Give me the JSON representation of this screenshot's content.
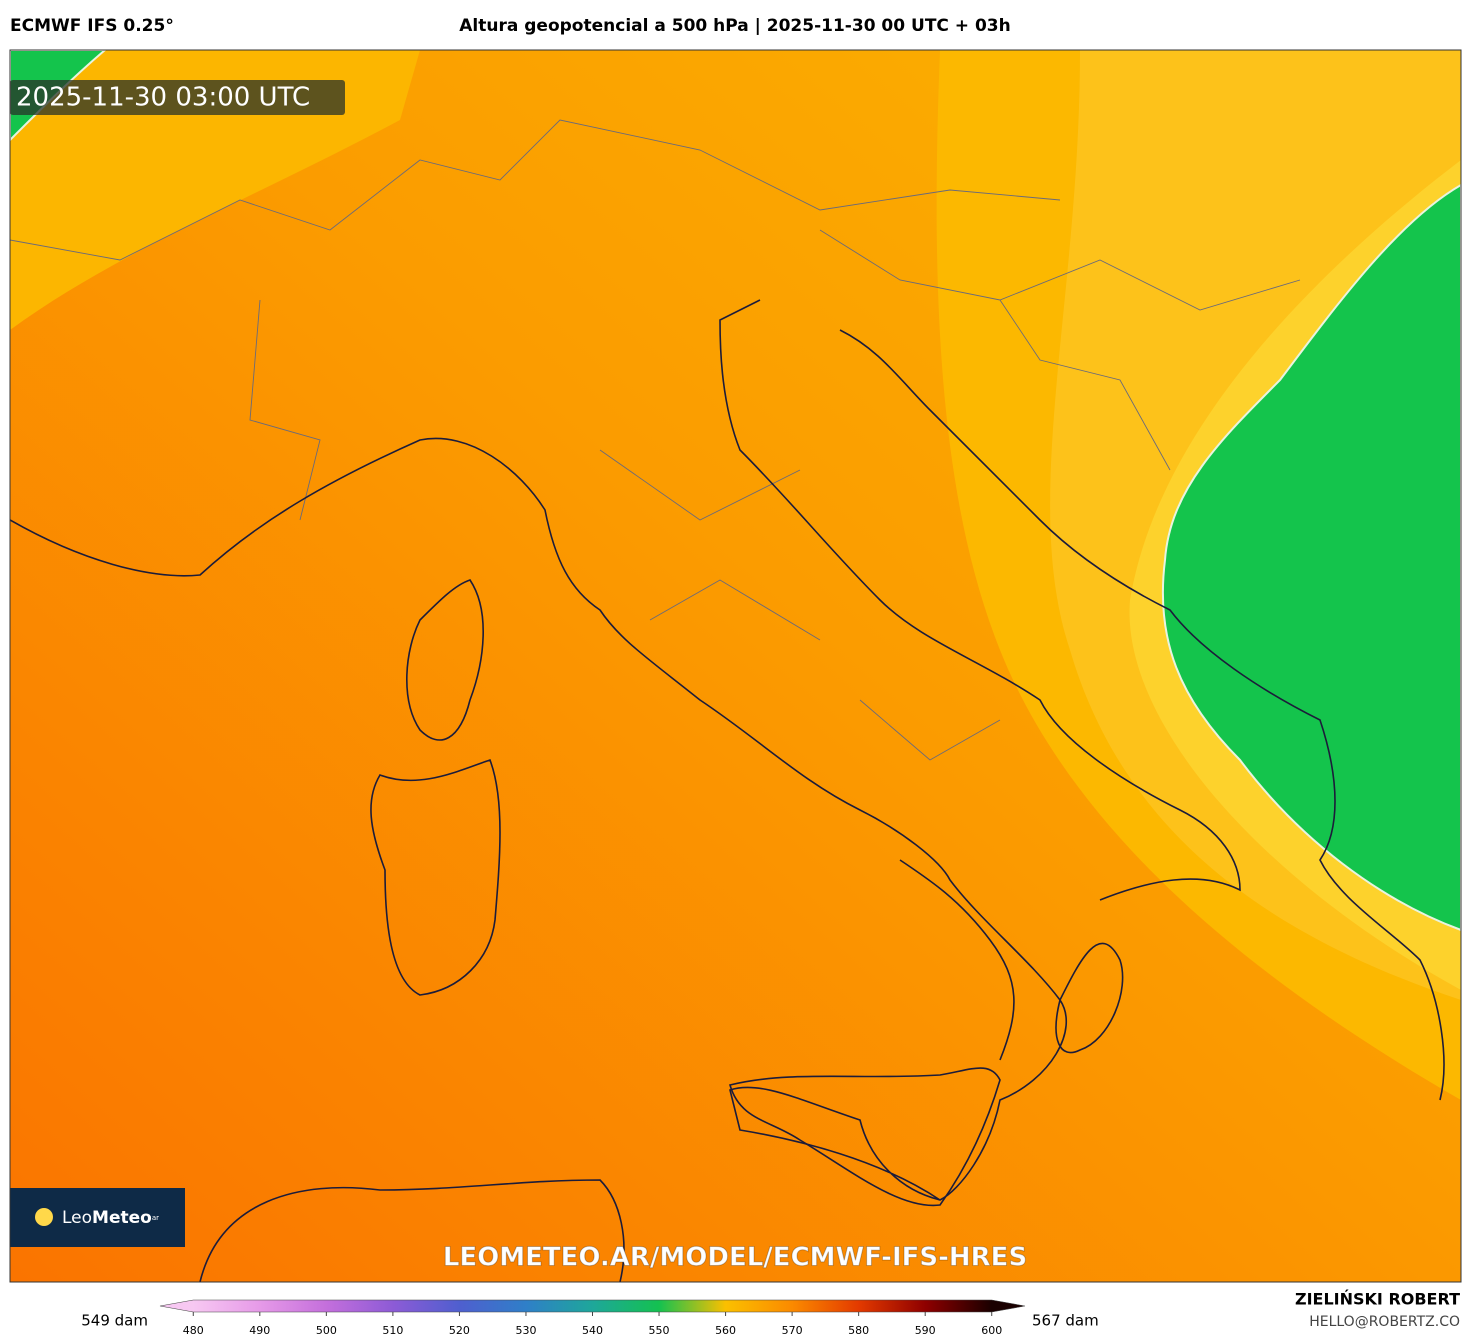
{
  "header": {
    "model": "ECMWF IFS 0.25°",
    "title": "Altura geopotencial a 500 hPa | 2025-11-30 00 UTC + 03h"
  },
  "map": {
    "valid_time": "2025-11-30 03:00 UTC",
    "logo": {
      "leo": "Leo",
      "meteo": "Meteo",
      "suffix": "ar"
    },
    "url": "LEOMETEO.AR/MODEL/ECMWF-IFS-HRES"
  },
  "colorbar": {
    "min_label": "549 dam",
    "max_label": "567 dam",
    "lim": [
      475,
      605
    ],
    "ticks": [
      480,
      490,
      500,
      510,
      520,
      530,
      540,
      550,
      560,
      570,
      580,
      590,
      600
    ],
    "colors": [
      "#f7c8f2",
      "#e69ae8",
      "#c46fdc",
      "#8d5bd6",
      "#4f5fcf",
      "#2f7fc8",
      "#1ea79a",
      "#14c150",
      "#fbc000",
      "#fb8a00",
      "#e33a00",
      "#8f0000",
      "#1a0000"
    ]
  },
  "credits": {
    "author": "ZIELIŃSKI ROBERT",
    "email": "HELLO@ROBERTZ.CO"
  }
}
